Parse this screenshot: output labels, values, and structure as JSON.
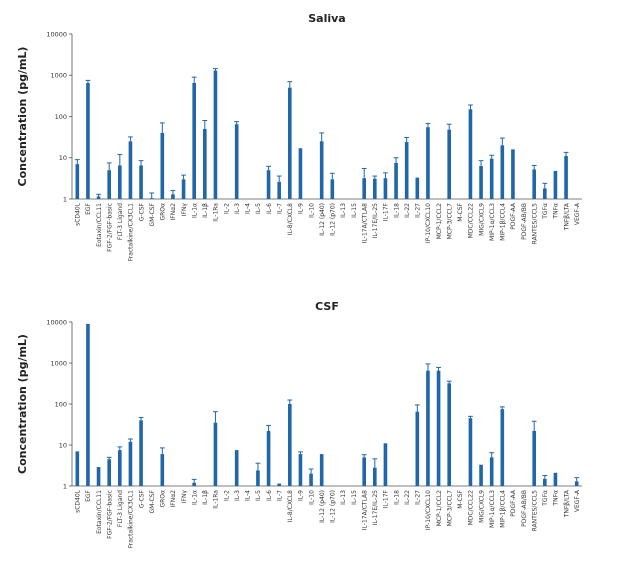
{
  "chart_data": [
    {
      "type": "bar",
      "title": "Saliva",
      "ylabel": "Concentration (pg/mL)",
      "xlabel": "",
      "yscale": "log",
      "ylim": [
        1,
        10000
      ],
      "yticks": [
        "1",
        "10",
        "100",
        "1000",
        "10000"
      ],
      "categories": [
        "sCD40L",
        "EGF",
        "Eotaxin/CCL11",
        "FGF-2/FGF-basic",
        "FLT-3 Ligand",
        "Fractalkine/CX3CL1",
        "G-CSF",
        "GM-CSF",
        "GROα",
        "IFNα2",
        "IFNγ",
        "IL-1α",
        "IL-1β",
        "IL-1Ra",
        "IL-2",
        "IL-3",
        "IL-4",
        "IL-5",
        "IL-6",
        "IL-7",
        "IL-8/CXCL8",
        "IL-9",
        "IL-10",
        "IL-12 (p40)",
        "IL-12 (p70)",
        "IL-13",
        "IL-15",
        "IL-17A/CTLA8",
        "IL-17E/IL-25",
        "IL-17F",
        "IL-18",
        "IL-22",
        "IL-27",
        "IP-10/CXCL10",
        "MCP-1/CCL2",
        "MCP-3/CCL7",
        "M-CSF",
        "MDC/CCL22",
        "MIG/CXCL9",
        "MIP-1α/CCL3",
        "MIP-1β/CCL4",
        "PDGF-AA",
        "PDGF-AB/BB",
        "RANTES/CCL5",
        "TGFα",
        "TNFα",
        "TNFβ/LTA",
        "VEGF-A"
      ],
      "values": [
        7,
        650,
        1.15,
        5,
        6.5,
        25,
        6.5,
        1.05,
        40,
        1.3,
        3,
        650,
        50,
        1300,
        0,
        65,
        0,
        0,
        5,
        2.6,
        500,
        17,
        0,
        25,
        3,
        0,
        0,
        3.2,
        3.1,
        3.2,
        7.5,
        24,
        3.3,
        55,
        0,
        48,
        0,
        150,
        6.3,
        9.5,
        20,
        16,
        0,
        5.2,
        1.8,
        4.8,
        11,
        0
      ],
      "errors": [
        9,
        750,
        1.3,
        7.5,
        12,
        32,
        8.5,
        1.4,
        70,
        1.6,
        3.8,
        900,
        80,
        1450,
        0,
        75,
        0,
        0,
        6.2,
        3.6,
        700,
        17,
        0,
        40,
        4.2,
        0,
        0,
        5.5,
        3.6,
        4.3,
        10,
        31,
        3.3,
        68,
        0,
        65,
        0,
        190,
        8.5,
        11.5,
        30,
        16,
        0,
        6.5,
        2.4,
        4.8,
        13.5,
        0
      ]
    },
    {
      "type": "bar",
      "title": "CSF",
      "ylabel": "Concentration (pg/mL)",
      "xlabel": "",
      "yscale": "log",
      "ylim": [
        1,
        10000
      ],
      "yticks": [
        "1",
        "10",
        "100",
        "1000",
        "10000"
      ],
      "categories": [
        "sCD40L",
        "EGF",
        "Eotaxin/CCL11",
        "FGF-2/FGF-basic",
        "FLT-3 Ligand",
        "Fractalkine/CX3CL1",
        "G-CSF",
        "GM-CSF",
        "GROα",
        "IFNα2",
        "IFNγ",
        "IL-1α",
        "IL-1β",
        "IL-1Ra",
        "IL-2",
        "IL-3",
        "IL-4",
        "IL-5",
        "IL-6",
        "IL-7",
        "IL-8/CXCL8",
        "IL-9",
        "IL-10",
        "IL-12 (p40)",
        "IL-12 (p70)",
        "IL-13",
        "IL-15",
        "IL-17A/CTLA8",
        "IL-17E/IL-25",
        "IL-17F",
        "IL-18",
        "IL-22",
        "IL-27",
        "IP-10/CXCL10",
        "MCP-1/CCL2",
        "MCP-3/CCL7",
        "M-CSF",
        "MDC/CCL22",
        "MIG/CXCL9",
        "MIP-1α/CCL3",
        "MIP-1β/CCL4",
        "PDGF-AA",
        "PDGF-AB/BB",
        "RANTES/CCL5",
        "TGFα",
        "TNFα",
        "TNFβ/LTA",
        "VEGF-A"
      ],
      "values": [
        7,
        9000,
        2.9,
        4.5,
        7.5,
        12,
        40,
        0,
        6,
        0,
        0,
        1.2,
        0,
        35,
        0,
        7.5,
        0,
        2.4,
        22,
        1.15,
        100,
        6,
        2,
        6,
        0,
        0,
        0,
        5,
        2.8,
        11,
        0,
        0,
        65,
        650,
        650,
        320,
        0,
        45,
        3.3,
        5,
        75,
        0,
        0,
        22,
        1.5,
        2.1,
        0,
        1.3
      ],
      "errors": [
        7,
        9000,
        2.9,
        5,
        9,
        14,
        47,
        0,
        8.5,
        0,
        0,
        1.45,
        0,
        65,
        0,
        7.5,
        0,
        3.6,
        30,
        1.15,
        125,
        6.8,
        2.6,
        6,
        0,
        0,
        0,
        5.8,
        4.6,
        11,
        0,
        0,
        95,
        950,
        780,
        360,
        0,
        50,
        3.3,
        6.5,
        85,
        0,
        0,
        38,
        1.8,
        2.1,
        0,
        1.6
      ]
    }
  ]
}
